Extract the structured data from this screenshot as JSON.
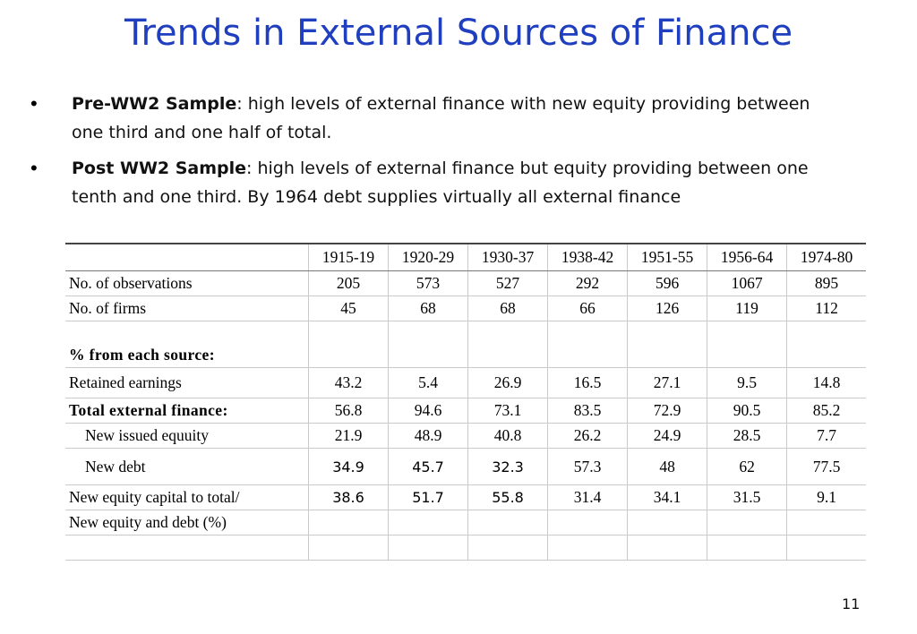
{
  "slide": {
    "title": "Trends in External Sources of Finance",
    "page_number": "11"
  },
  "bullets": [
    {
      "bold": "Pre-WW2 Sample",
      "text": ": high levels of external finance with new equity providing between one third and one half of total."
    },
    {
      "bold": "Post WW2 Sample",
      "text": ": high levels of external finance but equity providing between one tenth and one third. By 1964 debt supplies virtually all external finance"
    }
  ],
  "table": {
    "periods": [
      "1915-19",
      "1920-29",
      "1930-37",
      "1938-42",
      "1951-55",
      "1956-64",
      "1974-80"
    ],
    "rows": {
      "observations": {
        "label": "No. of observations",
        "values": [
          "205",
          "573",
          "527",
          "292",
          "596",
          "1067",
          "895"
        ]
      },
      "firms": {
        "label": "No. of firms",
        "values": [
          "45",
          "68",
          "68",
          "66",
          "126",
          "119",
          "112"
        ]
      },
      "section": {
        "label": "% from each source:"
      },
      "retained": {
        "label": "Retained earnings",
        "values": [
          "43.2",
          "5.4",
          "26.9",
          "16.5",
          "27.1",
          "9.5",
          "14.8"
        ]
      },
      "total_external": {
        "label": "Total external finance:",
        "values": [
          "56.8",
          "94.6",
          "73.1",
          "83.5",
          "72.9",
          "90.5",
          "85.2"
        ]
      },
      "new_equity": {
        "label": "New issued equuity",
        "values": [
          "21.9",
          "48.9",
          "40.8",
          "26.2",
          "24.9",
          "28.5",
          "7.7"
        ]
      },
      "new_debt": {
        "label": "New debt",
        "values": [
          "34.9",
          "45.7",
          "32.3",
          "57.3",
          "48",
          "62",
          "77.5"
        ]
      },
      "equity_ratio": {
        "label": "New equity capital to total/",
        "values": [
          "38.6",
          "51.7",
          "55.8",
          "31.4",
          "34.1",
          "31.5",
          "9.1"
        ]
      },
      "equity_ratio_cont": {
        "label": "New equity and debt (%)"
      }
    }
  }
}
